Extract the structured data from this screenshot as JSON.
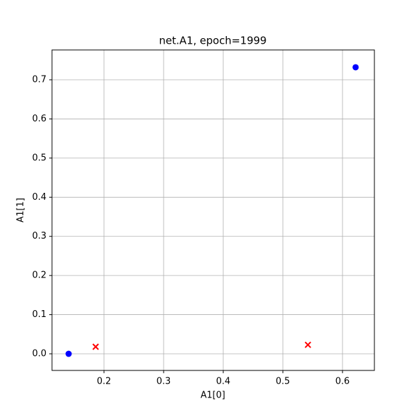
{
  "chart_data": {
    "type": "scatter",
    "title": "net.A1, epoch=1999",
    "x_label": "A1[0]",
    "y_label": "A1[1]",
    "series": [
      {
        "color": "#0000ff",
        "marker": "o",
        "x": [
          0.1407,
          0.622
        ],
        "values": [
          0.0,
          0.732
        ]
      },
      {
        "color": "#ff0000",
        "marker": "x",
        "x": [
          0.186,
          0.542
        ],
        "values": [
          0.018,
          0.023
        ]
      }
    ],
    "xlim": [
      0.1128,
      0.6535
    ],
    "ylim": [
      -0.0425,
      0.7762
    ],
    "xticks": [
      0.2,
      0.3,
      0.4,
      0.5,
      0.6
    ],
    "yticks": [
      {
        "value": 0,
        "label": "0.0"
      },
      0.1,
      0.2,
      0.3,
      0.4,
      0.5,
      0.6,
      0.7
    ],
    "grid": true
  }
}
